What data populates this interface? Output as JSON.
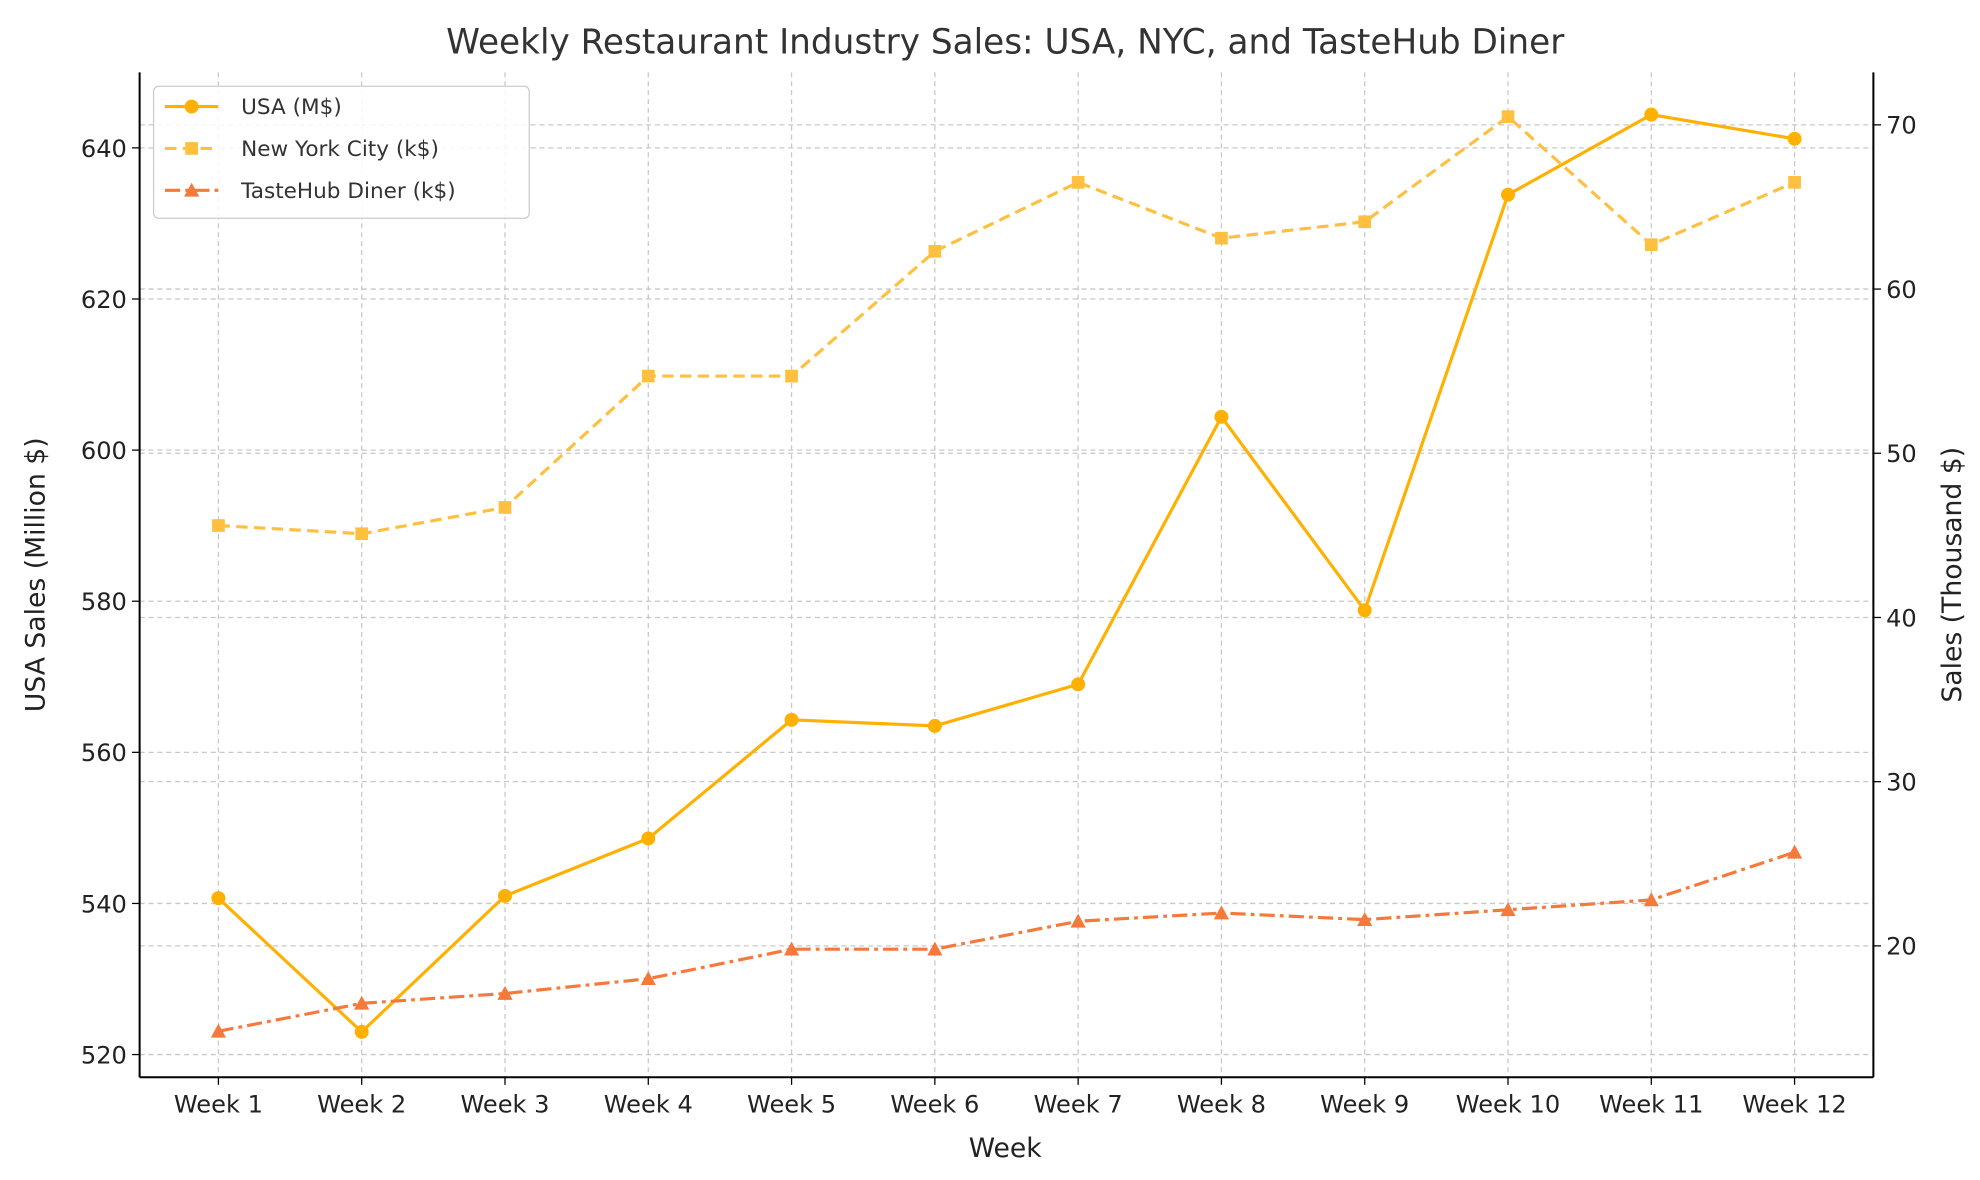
{
  "chart_data": {
    "type": "line",
    "title": "Weekly Restaurant Industry Sales: USA, NYC, and TasteHub Diner",
    "xlabel": "Week",
    "ylabel": "USA Sales (Million $)",
    "y2label": "Sales (Thousand $)",
    "categories": [
      "Week 1",
      "Week 2",
      "Week 3",
      "Week 4",
      "Week 5",
      "Week 6",
      "Week 7",
      "Week 8",
      "Week 9",
      "Week 10",
      "Week 11",
      "Week 12"
    ],
    "ylim": [
      517,
      650
    ],
    "y2lim": [
      12,
      73.2
    ],
    "yticks": [
      520,
      540,
      560,
      580,
      600,
      620,
      640
    ],
    "y2ticks": [
      20,
      30,
      40,
      50,
      60,
      70
    ],
    "grid": true,
    "legend_placement": "top-left",
    "series": [
      {
        "name": "USA (M$)",
        "axis": "left",
        "color": "#FFB000",
        "style": "solid",
        "marker": "circle",
        "values": [
          540.7,
          523.0,
          541.0,
          548.6,
          564.3,
          563.5,
          569.0,
          604.4,
          578.8,
          633.8,
          644.4,
          641.2
        ]
      },
      {
        "name": "New York City (k$)",
        "axis": "right",
        "color": "#FFBF3F",
        "style": "dashed",
        "marker": "square",
        "values": [
          45.6,
          45.1,
          46.7,
          54.7,
          54.7,
          62.3,
          66.5,
          63.1,
          64.1,
          70.5,
          62.7,
          66.5
        ]
      },
      {
        "name": "TasteHub Diner (k$)",
        "axis": "right",
        "color": "#F5793A",
        "style": "dashdot",
        "marker": "triangle",
        "values": [
          14.8,
          16.5,
          17.1,
          18.0,
          19.8,
          19.8,
          21.5,
          22.0,
          21.6,
          22.2,
          22.8,
          25.7
        ]
      }
    ]
  }
}
